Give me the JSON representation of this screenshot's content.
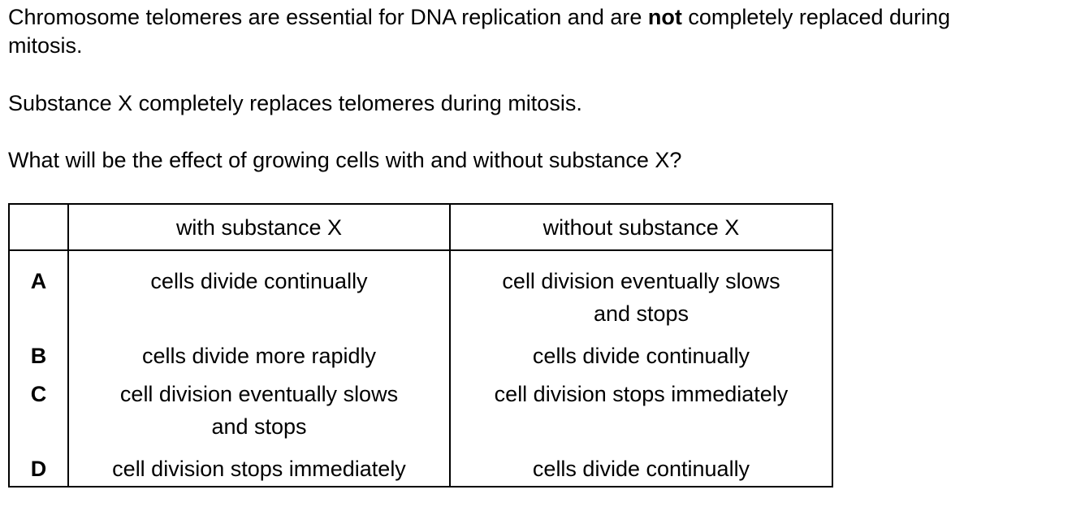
{
  "stem": {
    "line1_before": "Chromosome telomeres are essential for DNA replication and are ",
    "line1_bold": "not",
    "line1_after": " completely replaced during",
    "line1_wrap": "mitosis.",
    "line2": "Substance X completely replaces telomeres during mitosis.",
    "question": "What will be the effect of growing cells with and without substance X?"
  },
  "table": {
    "headers": [
      "",
      "with substance X",
      "without substance X"
    ],
    "rows": [
      {
        "letter": "A",
        "with": "cells divide continually",
        "without_l1": "cell division eventually slows",
        "without_l2": "and stops"
      },
      {
        "letter": "B",
        "with": "cells divide more rapidly",
        "without": "cells divide continually"
      },
      {
        "letter": "C",
        "with_l1": "cell division eventually slows",
        "with_l2": "and stops",
        "without": "cell division stops immediately"
      },
      {
        "letter": "D",
        "with": "cell division stops immediately",
        "without": "cells divide continually"
      }
    ]
  }
}
